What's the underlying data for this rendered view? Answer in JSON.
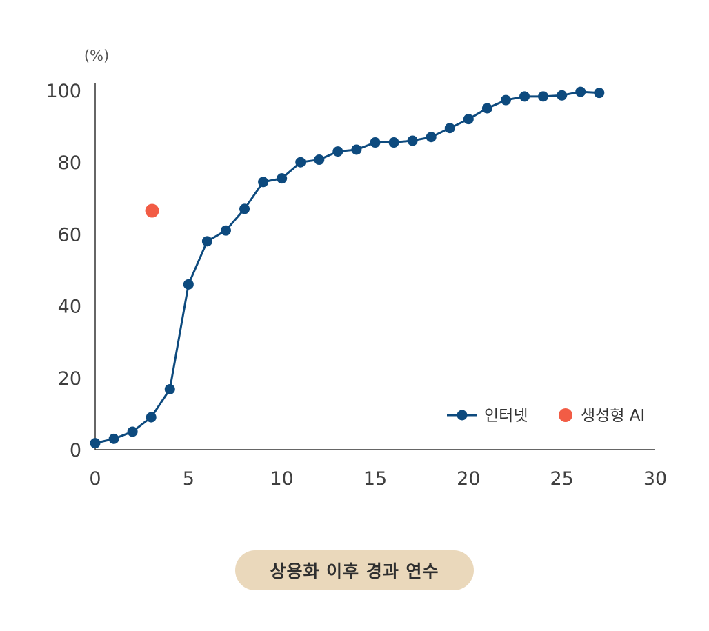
{
  "chart_data": {
    "type": "line",
    "unit_label": "(%)",
    "xlabel": "상용화 이후 경과 연수",
    "ylabel": "",
    "xlim": [
      0,
      30
    ],
    "ylim": [
      0,
      100
    ],
    "x_ticks": [
      "0",
      "5",
      "10",
      "15",
      "20",
      "25",
      "30"
    ],
    "y_ticks": [
      "0",
      "20",
      "40",
      "60",
      "80",
      "100"
    ],
    "legend_position": "bottom-right",
    "grid": false,
    "series": [
      {
        "name": "인터넷",
        "kind": "line",
        "color": "#0d4a7e",
        "x": [
          0,
          1,
          2,
          3,
          4,
          5,
          6,
          7,
          8,
          9,
          10,
          11,
          12,
          13,
          14,
          15,
          16,
          17,
          18,
          19,
          20,
          21,
          22,
          23,
          24,
          25,
          26,
          27
        ],
        "y": [
          1.8,
          3.0,
          5.0,
          9.0,
          16.8,
          46.0,
          58.0,
          61.0,
          67.0,
          74.5,
          75.5,
          80.0,
          80.7,
          83.0,
          83.5,
          85.5,
          85.5,
          86.0,
          87.0,
          89.5,
          92.0,
          95.0,
          97.3,
          98.3,
          98.3,
          98.6,
          99.6,
          99.3
        ]
      },
      {
        "name": "생성형 AI",
        "kind": "point",
        "color": "#f25c45",
        "x": [
          3.05
        ],
        "y": [
          66.5
        ]
      }
    ]
  },
  "colors": {
    "axis": "#333333",
    "pill_background": "#ead8bb"
  }
}
